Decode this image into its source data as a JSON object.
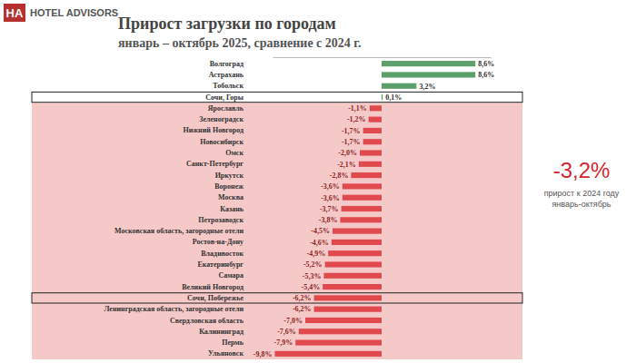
{
  "header": {
    "logo": "HA",
    "brand": "HOTEL ADVISORS"
  },
  "chart_data": {
    "type": "bar",
    "orientation": "horizontal",
    "title": "Прирост загрузки по городам",
    "subtitle": "январь – октябрь 2025, сравнение с 2024 г.",
    "categories": [
      "Волгоград",
      "Астрахань",
      "Тобольск",
      "Сочи, Горы",
      "Ярославль",
      "Зеленоградск",
      "Нижний Новгород",
      "Новосибирск",
      "Омск",
      "Санкт-Петербург",
      "Иркутск",
      "Воронеж",
      "Москва",
      "Казань",
      "Петрозаводск",
      "Московская область, загородные отели",
      "Ростов-на-Дону",
      "Владивосток",
      "Екатеринбург",
      "Самара",
      "Великий Новгород",
      "Сочи, Побережье",
      "Ленинградская область, загородные отели",
      "Свердловская область",
      "Калининград",
      "Пермь",
      "Ульяновск"
    ],
    "values": [
      8.6,
      8.6,
      3.2,
      0.1,
      -1.1,
      -1.2,
      -1.7,
      -1.7,
      -2.0,
      -2.1,
      -2.8,
      -3.6,
      -3.6,
      -3.7,
      -3.8,
      -4.5,
      -4.6,
      -4.9,
      -5.2,
      -5.3,
      -5.4,
      -6.2,
      -6.2,
      -7.0,
      -7.6,
      -7.9,
      -9.8
    ],
    "value_labels": [
      "8,6%",
      "8,6%",
      "3,2%",
      "0,1%",
      "-1,1%",
      "-1,2%",
      "-1,7%",
      "-1,7%",
      "-2,0%",
      "-2,1%",
      "-2,8%",
      "-3,6%",
      "-3,6%",
      "-3,7%",
      "-3,8%",
      "-4,5%",
      "-4,6%",
      "-4,9%",
      "-5,2%",
      "-5,3%",
      "-5,4%",
      "-6,2%",
      "-6,2%",
      "-7,0%",
      "-7,6%",
      "-7,9%",
      "-9,8%"
    ],
    "colors": [
      "#5b9f6b",
      "#5b9f6b",
      "#5b9f6b",
      "#5b9f6b",
      "#e04a4f",
      "#e04a4f",
      "#e04a4f",
      "#e04a4f",
      "#e04a4f",
      "#e04a4f",
      "#e04a4f",
      "#e04a4f",
      "#e04a4f",
      "#e04a4f",
      "#e04a4f",
      "#e04a4f",
      "#e04a4f",
      "#e04a4f",
      "#e04a4f",
      "#e04a4f",
      "#e04a4f",
      "#e04a4f",
      "#e04a4f",
      "#e04a4f",
      "#e04a4f",
      "#e04a4f",
      "#e04a4f"
    ],
    "xlim": [
      -10,
      10
    ],
    "grid": false,
    "data_labels": true,
    "tick_labels": "y",
    "annotations": [
      "-3,2%",
      "прирост к 2024 году",
      "январь-октябрь"
    ]
  }
}
